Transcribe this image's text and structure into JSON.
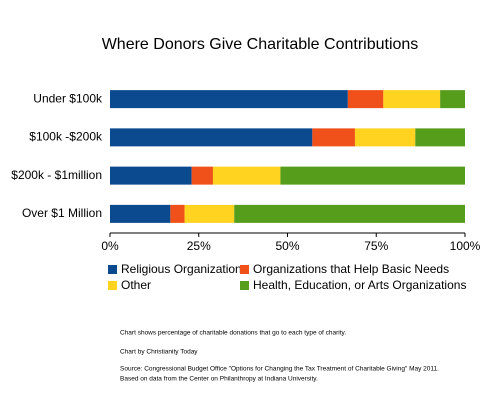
{
  "chart_data": {
    "type": "stacked-barh",
    "title": "Where Donors Give Charitable Contributions",
    "categories": [
      "Under $100k",
      "$100k -$200k",
      "$200k - $1million",
      "Over $1 Million"
    ],
    "series": [
      {
        "name": "Religious Organizations",
        "color": "#0b4a8f",
        "values": [
          67,
          57,
          23,
          17
        ]
      },
      {
        "name": "Organizations that Help Basic Needs",
        "color": "#f0501a",
        "values": [
          10,
          12,
          6,
          4
        ]
      },
      {
        "name": "Other",
        "color": "#ffd320",
        "values": [
          16,
          17,
          19,
          14
        ]
      },
      {
        "name": "Health, Education, or Arts Organizations",
        "color": "#579d1c",
        "values": [
          7,
          14,
          52,
          65
        ]
      }
    ],
    "xlim": [
      0,
      100
    ],
    "xticks": [
      {
        "value": 0,
        "label": "0%"
      },
      {
        "value": 25,
        "label": "25%"
      },
      {
        "value": 50,
        "label": "50%"
      },
      {
        "value": 75,
        "label": "75%"
      },
      {
        "value": 100,
        "label": "100%"
      }
    ],
    "notes": [
      "Chart shows percentage of charitable donations that go to each type of charity.",
      "Chart by Christianity Today",
      "Source: Congressional Budget Office \"Options for Changing the Tax Treatment of Charitable Giving\" May 2011.",
      "Based on data from the Center on Philanthropy at Indiana University."
    ]
  }
}
